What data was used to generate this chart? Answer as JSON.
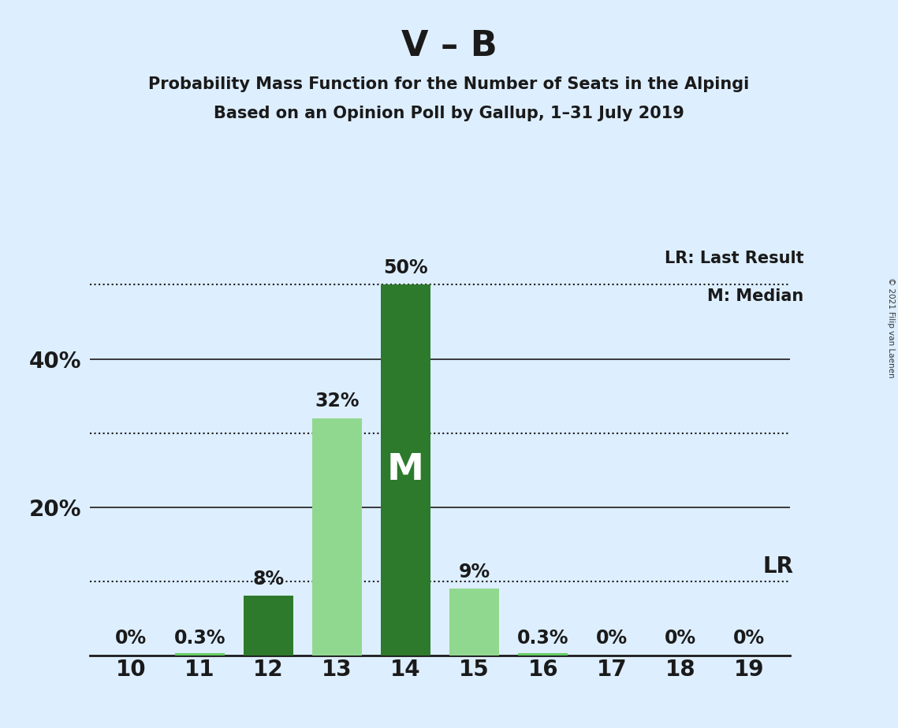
{
  "title": "V – B",
  "subtitle1": "Probability Mass Function for the Number of Seats in the Alpingi",
  "subtitle2": "Based on an Opinion Poll by Gallup, 1–31 July 2019",
  "copyright": "© 2021 Filip van Laenen",
  "categories": [
    10,
    11,
    12,
    13,
    14,
    15,
    16,
    17,
    18,
    19
  ],
  "values": [
    0.0,
    0.3,
    8.0,
    32.0,
    50.0,
    9.0,
    0.3,
    0.0,
    0.0,
    0.0
  ],
  "bar_colors": [
    "#66cc66",
    "#66cc66",
    "#2d7a2d",
    "#90d890",
    "#2d7a2d",
    "#90d890",
    "#66cc66",
    "#66cc66",
    "#66cc66",
    "#66cc66"
  ],
  "labels": [
    "0%",
    "0.3%",
    "8%",
    "32%",
    "50%",
    "9%",
    "0.3%",
    "0%",
    "0%",
    "0%"
  ],
  "median_bar_idx": 4,
  "median_label": "M",
  "lr_label": "LR",
  "lr_legend": "LR: Last Result",
  "m_legend": "M: Median",
  "solid_hlines": [
    20,
    40
  ],
  "dotted_hlines": [
    10,
    30,
    50
  ],
  "background_color": "#ddeeff",
  "ylim_max": 57,
  "title_fontsize": 32,
  "subtitle_fontsize": 15,
  "label_fontsize": 17,
  "axis_fontsize": 20,
  "legend_fontsize": 15
}
